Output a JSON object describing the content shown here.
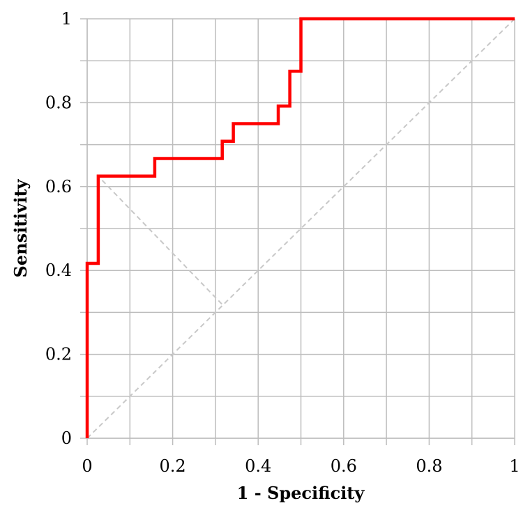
{
  "chart_data": {
    "type": "line",
    "title": "",
    "xlabel": "1 - Specificity",
    "ylabel": "Sensitivity",
    "xlim": [
      0,
      1
    ],
    "ylim": [
      0,
      1
    ],
    "grid": true,
    "x_ticks": [
      0,
      0.1,
      0.2,
      0.3,
      0.4,
      0.5,
      0.6,
      0.7,
      0.8,
      0.9,
      1
    ],
    "y_ticks": [
      0,
      0.1,
      0.2,
      0.3,
      0.4,
      0.5,
      0.6,
      0.7,
      0.8,
      0.9,
      1
    ],
    "x_tick_labels": [
      {
        "value": 0,
        "label": "0"
      },
      {
        "value": 0.2,
        "label": "0.2"
      },
      {
        "value": 0.4,
        "label": "0.4"
      },
      {
        "value": 0.6,
        "label": "0.6"
      },
      {
        "value": 0.8,
        "label": "0.8"
      },
      {
        "value": 1,
        "label": "1"
      }
    ],
    "y_tick_labels": [
      {
        "value": 0,
        "label": "0"
      },
      {
        "value": 0.2,
        "label": "0.2"
      },
      {
        "value": 0.4,
        "label": "0.4"
      },
      {
        "value": 0.6,
        "label": "0.6"
      },
      {
        "value": 0.8,
        "label": "0.8"
      },
      {
        "value": 1,
        "label": "1"
      }
    ],
    "series": [
      {
        "color": "#ff0000",
        "style": "solid",
        "points": [
          [
            0,
            0
          ],
          [
            0,
            0.417
          ],
          [
            0.026,
            0.417
          ],
          [
            0.026,
            0.625
          ],
          [
            0.158,
            0.625
          ],
          [
            0.158,
            0.667
          ],
          [
            0.316,
            0.667
          ],
          [
            0.316,
            0.708
          ],
          [
            0.342,
            0.708
          ],
          [
            0.342,
            0.75
          ],
          [
            0.447,
            0.75
          ],
          [
            0.447,
            0.792
          ],
          [
            0.474,
            0.792
          ],
          [
            0.474,
            0.875
          ],
          [
            0.5,
            0.875
          ],
          [
            0.5,
            1
          ],
          [
            1,
            1
          ]
        ]
      },
      {
        "color": "#c8c8c8",
        "style": "dashed",
        "points": [
          [
            0,
            0
          ],
          [
            1,
            1
          ]
        ]
      },
      {
        "color": "#c8c8c8",
        "style": "dashed",
        "points": [
          [
            0.035,
            0.615
          ],
          [
            0.315,
            0.32
          ]
        ]
      }
    ]
  }
}
